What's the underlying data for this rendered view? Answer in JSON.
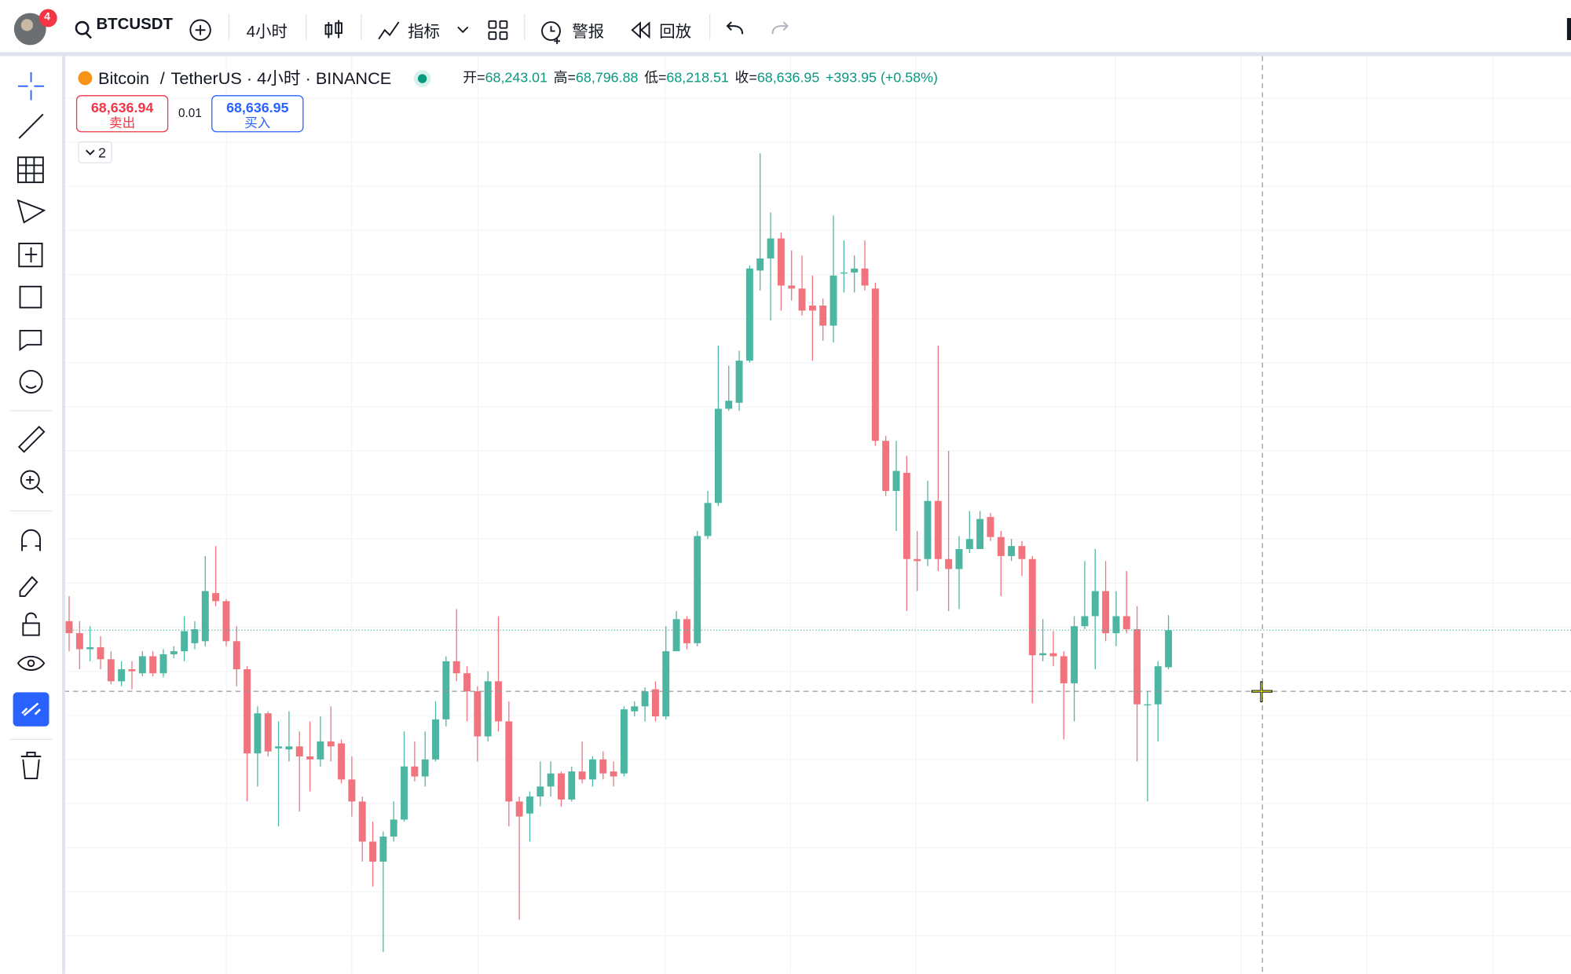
{
  "toolbar": {
    "notification_count": "4",
    "symbol": "BTCUSDT",
    "interval": "4小时",
    "indicators": "指标",
    "alerts": "警报",
    "replay": "回放"
  },
  "legend": {
    "symbol_name": "Bitcoin",
    "separator": "/",
    "symbol_details": "TetherUS · 4小时 · BINANCE",
    "ohlc": [
      {
        "label": "开=",
        "value": "68,243.01"
      },
      {
        "label": "高=",
        "value": "68,796.88"
      },
      {
        "label": "低=",
        "value": "68,218.51"
      },
      {
        "label": "收=",
        "value": "68,636.95"
      }
    ],
    "change": "+393.95 (+0.58%)"
  },
  "trade": {
    "sell_price": "68,636.94",
    "sell_label": "卖出",
    "quantity": "0.01",
    "buy_price": "68,636.95",
    "buy_label": "买入"
  },
  "indicator_toggle": "2",
  "chart_data": {
    "type": "candlestick",
    "ylim": [
      65210,
      74370
    ],
    "up_color": "#4db6a2",
    "down_color": "#f0737d",
    "candles": [
      [
        68730,
        68980,
        68430,
        68610
      ],
      [
        68610,
        68730,
        68250,
        68450
      ],
      [
        68450,
        68680,
        68330,
        68470
      ],
      [
        68470,
        68580,
        68250,
        68350
      ],
      [
        68350,
        68430,
        68100,
        68130
      ],
      [
        68130,
        68330,
        68080,
        68250
      ],
      [
        68250,
        68330,
        68050,
        68230
      ],
      [
        68210,
        68430,
        68180,
        68380
      ],
      [
        68380,
        68430,
        68180,
        68210
      ],
      [
        68210,
        68450,
        68170,
        68400
      ],
      [
        68400,
        68480,
        68360,
        68430
      ],
      [
        68430,
        68780,
        68330,
        68630
      ],
      [
        68510,
        68730,
        68450,
        68650
      ],
      [
        68530,
        69380,
        68480,
        69030
      ],
      [
        69010,
        69480,
        68880,
        68930
      ],
      [
        68930,
        68950,
        68480,
        68530
      ],
      [
        68530,
        68680,
        68080,
        68250
      ],
      [
        68250,
        68280,
        66930,
        67410
      ],
      [
        67410,
        67880,
        67080,
        67810
      ],
      [
        67810,
        67830,
        67380,
        67430
      ],
      [
        67460,
        67730,
        66680,
        67480
      ],
      [
        67450,
        67830,
        67330,
        67480
      ],
      [
        67480,
        67630,
        66830,
        67380
      ],
      [
        67380,
        67730,
        67030,
        67350
      ],
      [
        67350,
        67780,
        67280,
        67530
      ],
      [
        67530,
        67880,
        67330,
        67480
      ],
      [
        67510,
        67550,
        67110,
        67150
      ],
      [
        67150,
        67380,
        66780,
        66930
      ],
      [
        66930,
        66980,
        66330,
        66530
      ],
      [
        66530,
        66730,
        66080,
        66330
      ],
      [
        66330,
        66630,
        65430,
        66580
      ],
      [
        66580,
        66930,
        66530,
        66750
      ],
      [
        66750,
        67630,
        66730,
        67280
      ],
      [
        67280,
        67530,
        67130,
        67180
      ],
      [
        67180,
        67630,
        67080,
        67350
      ],
      [
        67350,
        67930,
        67330,
        67750
      ],
      [
        67750,
        68380,
        67680,
        68330
      ],
      [
        68330,
        68850,
        68130,
        68210
      ],
      [
        68210,
        68280,
        67730,
        68030
      ],
      [
        68030,
        68080,
        67330,
        67580
      ],
      [
        67580,
        68230,
        67530,
        68130
      ],
      [
        68130,
        68780,
        67630,
        67730
      ],
      [
        67730,
        67930,
        66680,
        66930
      ],
      [
        66930,
        66980,
        65750,
        66780
      ],
      [
        66810,
        67030,
        66530,
        66980
      ],
      [
        66980,
        67330,
        66880,
        67080
      ],
      [
        67080,
        67330,
        66980,
        67210
      ],
      [
        67210,
        67230,
        66880,
        66950
      ],
      [
        66950,
        67280,
        66930,
        67230
      ],
      [
        67230,
        67530,
        67110,
        67150
      ],
      [
        67150,
        67380,
        67080,
        67350
      ],
      [
        67350,
        67430,
        67150,
        67210
      ],
      [
        67230,
        67330,
        67080,
        67180
      ],
      [
        67210,
        67880,
        67180,
        67850
      ],
      [
        67830,
        67930,
        67780,
        67880
      ],
      [
        67880,
        68070,
        67730,
        68030
      ],
      [
        68050,
        68130,
        67730,
        67780
      ],
      [
        67780,
        68680,
        67750,
        68430
      ],
      [
        68430,
        68830,
        68430,
        68750
      ],
      [
        68750,
        68780,
        68450,
        68510
      ],
      [
        68510,
        69630,
        68480,
        69580
      ],
      [
        69580,
        70030,
        69550,
        69910
      ],
      [
        69910,
        71480,
        69880,
        70850
      ],
      [
        70850,
        71280,
        70830,
        70930
      ],
      [
        70910,
        71430,
        70830,
        71330
      ],
      [
        71330,
        72280,
        71310,
        72250
      ],
      [
        72230,
        73400,
        72030,
        72350
      ],
      [
        72350,
        72810,
        71730,
        72550
      ],
      [
        72550,
        72610,
        71830,
        72080
      ],
      [
        72080,
        72430,
        71930,
        72050
      ],
      [
        72050,
        72380,
        71780,
        71830
      ],
      [
        71880,
        72180,
        71330,
        71830
      ],
      [
        71880,
        71950,
        71530,
        71680
      ],
      [
        71680,
        72780,
        71510,
        72180
      ],
      [
        72210,
        72530,
        72010,
        72210
      ],
      [
        72210,
        72380,
        72010,
        72250
      ],
      [
        72250,
        72530,
        72030,
        72080
      ],
      [
        72050,
        72110,
        70480,
        70530
      ],
      [
        70530,
        70580,
        69980,
        70030
      ],
      [
        70030,
        70530,
        69630,
        70230
      ],
      [
        70210,
        70380,
        68830,
        69350
      ],
      [
        69350,
        69630,
        69030,
        69330
      ],
      [
        69350,
        70130,
        69280,
        69930
      ],
      [
        69930,
        71480,
        69230,
        69350
      ],
      [
        69350,
        70430,
        68830,
        69250
      ],
      [
        69250,
        69580,
        68850,
        69450
      ],
      [
        69450,
        69830,
        69410,
        69550
      ],
      [
        69450,
        69830,
        69450,
        69750
      ],
      [
        69770,
        69810,
        69530,
        69570
      ],
      [
        69570,
        69630,
        68980,
        69380
      ],
      [
        69380,
        69550,
        69330,
        69480
      ],
      [
        69480,
        69530,
        69180,
        69350
      ],
      [
        69350,
        69380,
        67910,
        68390
      ],
      [
        68390,
        68750,
        68330,
        68410
      ],
      [
        68410,
        68630,
        68280,
        68380
      ],
      [
        68380,
        68430,
        67550,
        68110
      ],
      [
        68110,
        68780,
        67730,
        68680
      ],
      [
        68680,
        69330,
        68650,
        68780
      ],
      [
        68780,
        69450,
        68250,
        69030
      ],
      [
        69030,
        69330,
        68530,
        68610
      ],
      [
        68610,
        69030,
        68480,
        68780
      ],
      [
        68780,
        69230,
        68610,
        68650
      ],
      [
        68650,
        68880,
        67330,
        67900
      ],
      [
        67900,
        68030,
        66930,
        67900
      ],
      [
        67900,
        68330,
        67530,
        68280
      ],
      [
        68270,
        68790,
        68250,
        68640
      ]
    ]
  }
}
